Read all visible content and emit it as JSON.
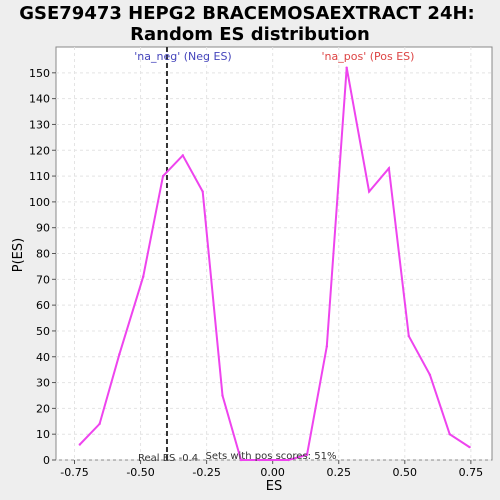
{
  "chart_data": {
    "type": "line",
    "title_line1": "GSE79473 HEPG2 BRACEMOSAEXTRACT 24H:",
    "title_line2": "Random ES distribution",
    "xlabel": "ES",
    "ylabel": "P(ES)",
    "xlim": [
      -0.82,
      0.83
    ],
    "ylim": [
      0,
      160
    ],
    "xticks": [
      -0.75,
      -0.5,
      -0.25,
      0.0,
      0.25,
      0.5,
      0.75
    ],
    "xtick_labels": [
      "-0.75",
      "-0.50",
      "-0.25",
      "0.00",
      "0.25",
      "0.50",
      "0.75"
    ],
    "yticks": [
      0,
      10,
      20,
      30,
      40,
      50,
      60,
      70,
      80,
      90,
      100,
      110,
      120,
      130,
      140,
      150
    ],
    "grid": true,
    "series_color": "#ee44ee",
    "x": [
      -0.73,
      -0.655,
      -0.58,
      -0.49,
      -0.415,
      -0.34,
      -0.265,
      -0.19,
      -0.12,
      -0.05,
      0.06,
      0.13,
      0.205,
      0.28,
      0.365,
      0.44,
      0.515,
      0.595,
      0.67,
      0.745
    ],
    "y": [
      6,
      14,
      41,
      71,
      110,
      118,
      104,
      25,
      0,
      0,
      0,
      2,
      44,
      152,
      104,
      113,
      48,
      33,
      10,
      5
    ],
    "real_es": -0.4,
    "real_es_label": "Real ES -0.4",
    "neg_label": "'na_neg' (Neg ES)",
    "neg_color": "#4444bb",
    "pos_label": "'na_pos' (Pos ES)",
    "pos_color": "#dd4444",
    "footer": "Sets with pos scores: 51%"
  }
}
